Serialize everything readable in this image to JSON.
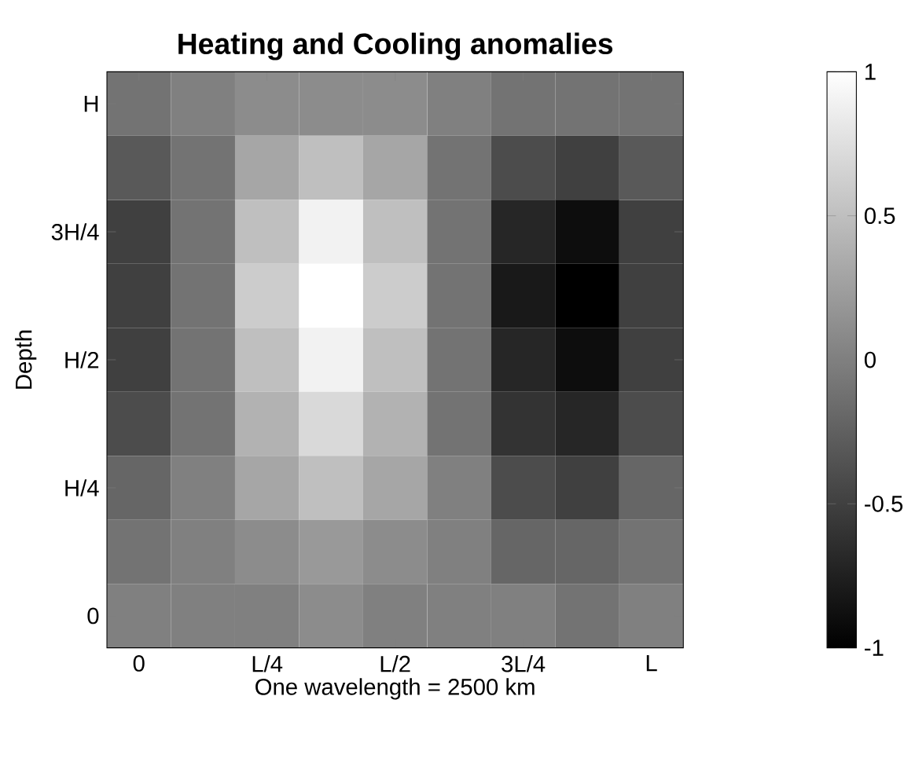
{
  "chart_data": {
    "type": "heatmap",
    "title": "Heating and Cooling anomalies",
    "xlabel": "One wavelength = 2500 km",
    "ylabel": "Depth",
    "categories": [
      "0",
      null,
      "L/4",
      null,
      "L/2",
      null,
      "3L/4",
      null,
      "L"
    ],
    "y_categories": [
      "H",
      null,
      "3H/4",
      null,
      "H/2",
      null,
      "H/4",
      null,
      "0"
    ],
    "cells": [
      [
        -0.1,
        0,
        0.1,
        0.1,
        0.1,
        0,
        -0.1,
        -0.1,
        -0.1
      ],
      [
        -0.3,
        -0.1,
        0.3,
        0.5,
        0.3,
        -0.1,
        -0.4,
        -0.5,
        -0.3
      ],
      [
        -0.5,
        -0.1,
        0.5,
        0.9,
        0.5,
        -0.1,
        -0.7,
        -0.9,
        -0.5
      ],
      [
        -0.5,
        -0.1,
        0.6,
        1.0,
        0.6,
        -0.1,
        -0.8,
        -1.0,
        -0.5
      ],
      [
        -0.5,
        -0.1,
        0.5,
        0.9,
        0.5,
        -0.1,
        -0.7,
        -0.9,
        -0.5
      ],
      [
        -0.4,
        -0.1,
        0.4,
        0.7,
        0.4,
        -0.1,
        -0.6,
        -0.7,
        -0.4
      ],
      [
        -0.2,
        0,
        0.3,
        0.5,
        0.3,
        0,
        -0.4,
        -0.5,
        -0.2
      ],
      [
        -0.1,
        0,
        0.1,
        0.2,
        0.1,
        0,
        -0.2,
        -0.2,
        -0.1
      ],
      [
        0,
        0,
        0,
        0.1,
        0,
        0,
        0,
        -0.1,
        0
      ]
    ],
    "clim": [
      -1,
      1
    ],
    "cticks": [
      -1,
      -0.5,
      0,
      0.5,
      1
    ]
  }
}
